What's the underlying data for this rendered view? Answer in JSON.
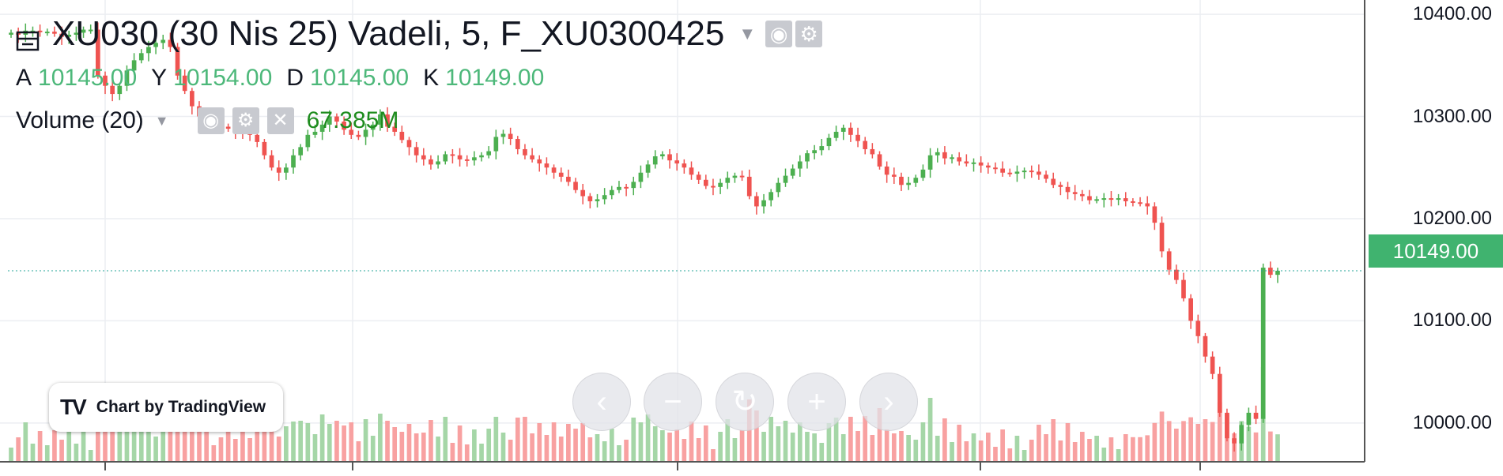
{
  "header": {
    "title": "XU030 (30 Nis 25) Vadeli, 5, F_XU0300425",
    "ohlc": [
      {
        "key": "A",
        "value": "10145.00"
      },
      {
        "key": "Y",
        "value": "10154.00"
      },
      {
        "key": "D",
        "value": "10145.00"
      },
      {
        "key": "K",
        "value": "10149.00"
      }
    ],
    "volume_label": "Volume (20)",
    "volume_value": "67.385M",
    "icons": [
      "series-icon",
      "eye-icon",
      "gear-icon",
      "close-icon",
      "caret-down-icon"
    ]
  },
  "branding": {
    "text": "Chart by TradingView"
  },
  "nav_buttons": [
    {
      "name": "scroll-left-button",
      "glyph": "‹"
    },
    {
      "name": "zoom-out-button",
      "glyph": "−"
    },
    {
      "name": "reset-button",
      "glyph": "↻"
    },
    {
      "name": "zoom-in-button",
      "glyph": "+"
    },
    {
      "name": "scroll-right-button",
      "glyph": "›"
    }
  ],
  "colors": {
    "up": "#4caf50",
    "down": "#ef5350",
    "up_volume": "#a5d6a7",
    "down_volume": "#f8a1a1",
    "last_price_tag": "#40b36f"
  },
  "chart_data": {
    "type": "candlestick",
    "y_axis_ticks": [
      "10400.00",
      "10300.00",
      "10200.00",
      "10100.00",
      "10000.00"
    ],
    "y_axis_values": [
      10400,
      10300,
      10200,
      10100,
      10000
    ],
    "ylim": [
      9962,
      10414
    ],
    "last_price": 10149,
    "last_price_label": "10149.00",
    "grid": true,
    "close_series": [
      10382,
      10380,
      10384,
      10384,
      10383,
      10383,
      10381,
      10378,
      10380,
      10382,
      10385,
      10385,
      10340,
      10330,
      10322,
      10330,
      10345,
      10355,
      10362,
      10368,
      10372,
      10375,
      10368,
      10340,
      10325,
      10310,
      10300,
      10295,
      10292,
      10290,
      10288,
      10286,
      10285,
      10282,
      10275,
      10262,
      10250,
      10245,
      10250,
      10262,
      10270,
      10282,
      10285,
      10292,
      10300,
      10295,
      10287,
      10282,
      10280,
      10287,
      10292,
      10302,
      10290,
      10285,
      10277,
      10270,
      10262,
      10258,
      10253,
      10256,
      10263,
      10262,
      10258,
      10257,
      10260,
      10262,
      10266,
      10280,
      10283,
      10278,
      10268,
      10262,
      10258,
      10254,
      10250,
      10245,
      10241,
      10236,
      10228,
      10222,
      10217,
      10219,
      10223,
      10228,
      10231,
      10230,
      10236,
      10245,
      10253,
      10261,
      10263,
      10257,
      10254,
      10250,
      10243,
      10238,
      10232,
      10231,
      10235,
      10240,
      10242,
      10241,
      10222,
      10212,
      10218,
      10226,
      10235,
      10242,
      10249,
      10256,
      10264,
      10267,
      10271,
      10279,
      10285,
      10289,
      10282,
      10276,
      10268,
      10263,
      10251,
      10243,
      10241,
      10233,
      10235,
      10240,
      10248,
      10262,
      10265,
      10259,
      10260,
      10256,
      10254,
      10255,
      10252,
      10250,
      10249,
      10245,
      10244,
      10246,
      10247,
      10246,
      10243,
      10239,
      10233,
      10231,
      10226,
      10224,
      10222,
      10218,
      10219,
      10220,
      10219,
      10220,
      10217,
      10216,
      10215,
      10212,
      10196,
      10168,
      10150,
      10140,
      10122,
      10100,
      10085,
      10065,
      10048,
      10010,
      9985,
      9980,
      9998,
      10010,
      10004,
      10152,
      10145,
      10149
    ]
  }
}
